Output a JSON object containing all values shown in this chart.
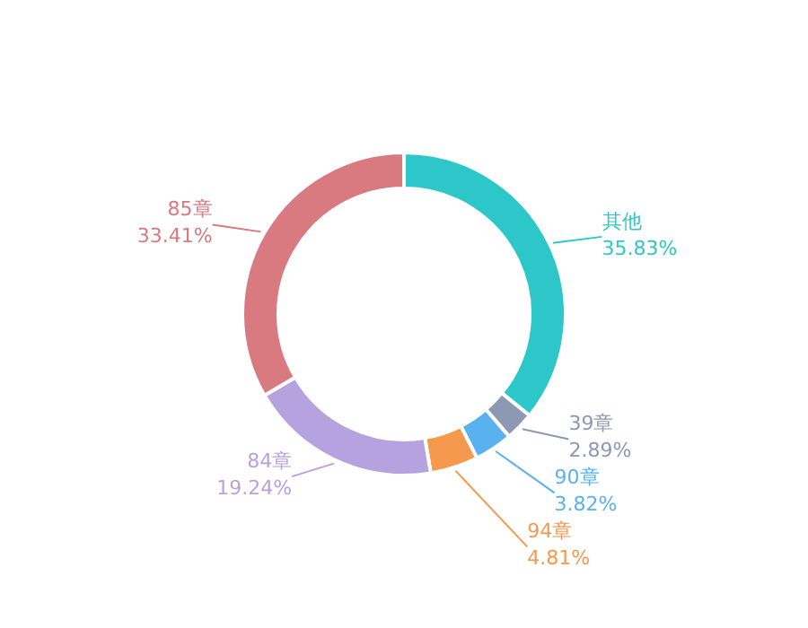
{
  "chart_data": {
    "type": "donut",
    "categories": [
      "其他",
      "39章",
      "90章",
      "94章",
      "84章",
      "85章"
    ],
    "values": [
      35.83,
      2.89,
      3.82,
      4.81,
      19.24,
      33.41
    ],
    "value_labels": [
      "35.83%",
      "2.89%",
      "3.82%",
      "4.81%",
      "19.24%",
      "33.41%"
    ],
    "colors": [
      "#2ec7c9",
      "#8d98b3",
      "#5ab1ef",
      "#f5994e",
      "#b6a2de",
      "#d87a80"
    ]
  }
}
